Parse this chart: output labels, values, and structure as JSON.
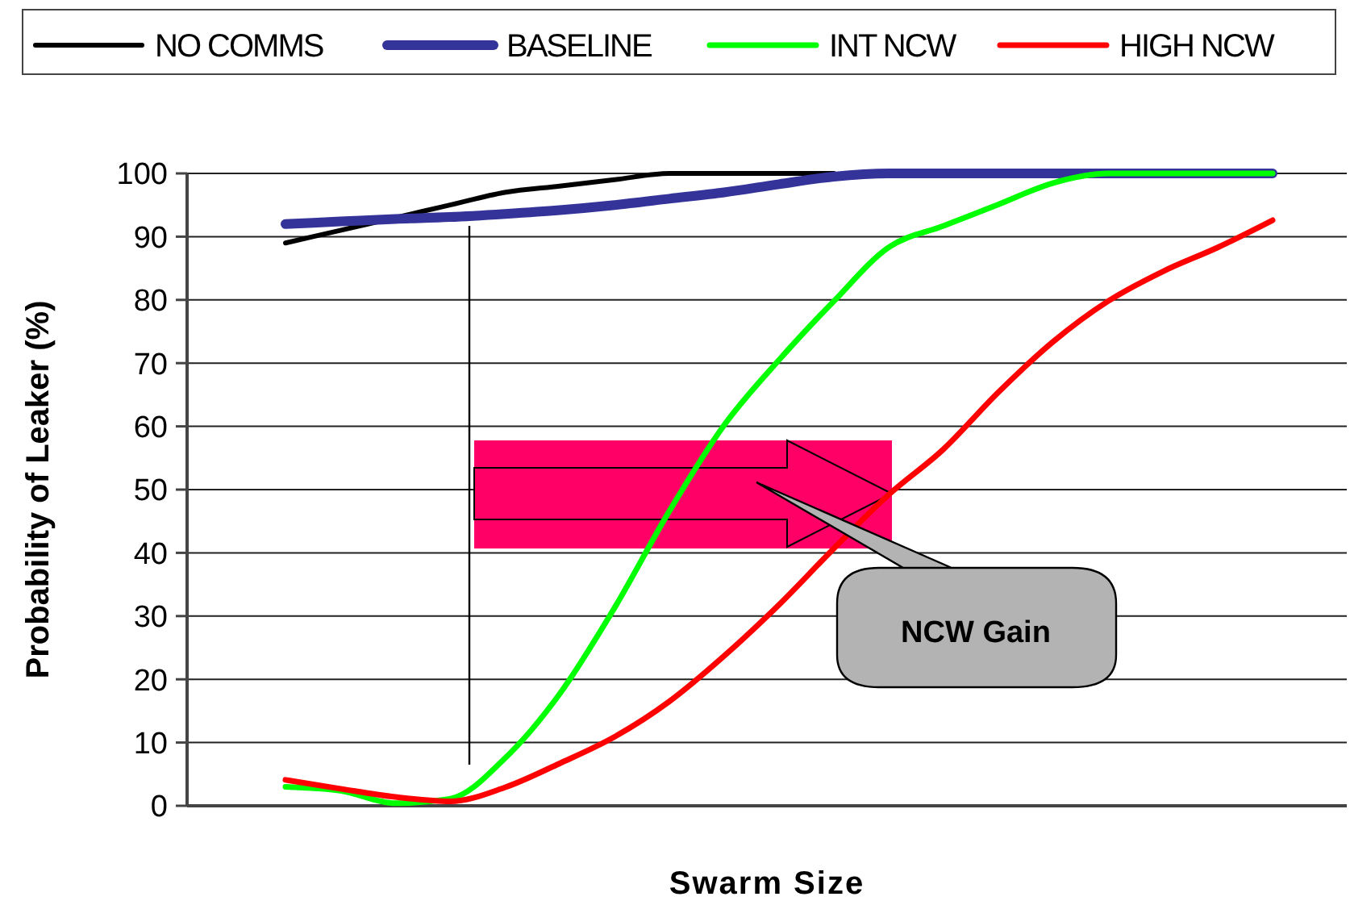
{
  "chart_data": {
    "type": "line",
    "xlabel": "Swarm Size",
    "ylabel": "Probability of Leaker (%)",
    "categories": [
      null,
      null,
      null,
      null,
      null,
      null,
      null,
      null,
      null,
      null,
      null,
      null,
      null,
      null,
      null,
      null,
      null,
      null,
      null
    ],
    "series": [
      {
        "name": "NO COMMS",
        "color": "#000000",
        "values": [
          89,
          91,
          93,
          95,
          97,
          98,
          99,
          100,
          100,
          100,
          100,
          null,
          null,
          null,
          null,
          null,
          null,
          null,
          null
        ]
      },
      {
        "name": "BASELINE",
        "color": "#333399",
        "values": [
          92,
          92.4,
          92.8,
          93.1,
          93.6,
          94.2,
          95,
          96,
          97,
          98.3,
          99.5,
          100,
          100,
          100,
          100,
          100,
          100,
          100,
          100
        ]
      },
      {
        "name": "INT NCW",
        "color": "#00ff00",
        "values": [
          3,
          2.4,
          0.4,
          1.1,
          7.5,
          17.7,
          31.3,
          46.6,
          60.2,
          70.5,
          79.8,
          88.3,
          91.7,
          95.1,
          98.5,
          100,
          100,
          100,
          100
        ]
      },
      {
        "name": "HIGH NCW",
        "color": "#ff0000",
        "values": [
          4.1,
          2.7,
          1.4,
          0.7,
          2.9,
          6.7,
          10.9,
          16.5,
          23.7,
          31.8,
          40.7,
          49.2,
          56.4,
          65.4,
          73.4,
          79.8,
          84.5,
          88.3,
          92.6
        ]
      }
    ],
    "ylim": [
      0,
      100
    ],
    "yticks": [
      0,
      10,
      20,
      30,
      40,
      50,
      60,
      70,
      80,
      90,
      100
    ],
    "grid": "y",
    "legend": "top",
    "tick_labels": "y",
    "annotations": [
      "NCW Gain"
    ]
  }
}
